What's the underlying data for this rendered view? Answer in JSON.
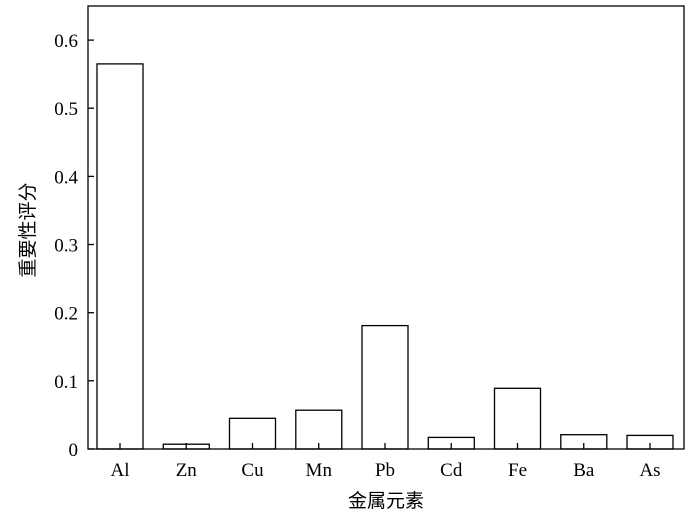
{
  "chart_data": {
    "type": "bar",
    "title": "",
    "xlabel": "金属元素",
    "ylabel": "重要性评分",
    "categories": [
      "Al",
      "Zn",
      "Cu",
      "Mn",
      "Pb",
      "Cd",
      "Fe",
      "Ba",
      "As"
    ],
    "values": [
      0.565,
      0.007,
      0.045,
      0.057,
      0.181,
      0.017,
      0.089,
      0.021,
      0.02
    ],
    "ylim": [
      0,
      0.65
    ],
    "yticks": [
      0,
      0.1,
      0.2,
      0.3,
      0.4,
      0.5,
      0.6
    ],
    "ytick_labels": [
      "0",
      "0.1",
      "0.2",
      "0.3",
      "0.4",
      "0.5",
      "0.6"
    ],
    "grid": false,
    "legend": "none",
    "bar_fill": "#ffffff",
    "bar_stroke": "#000000"
  }
}
